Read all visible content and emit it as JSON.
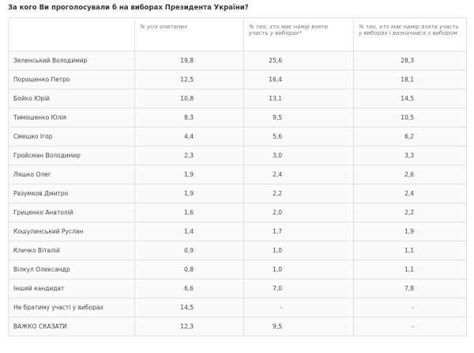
{
  "header": {
    "title": "За кого Ви проголосували б на виборах Президента України?"
  },
  "table": {
    "columns": [
      "% усіх опитаних",
      "% тих, хто має намір взяти участь у виборах*",
      "% тих, хто має намір взяти участь у виборах і визначився з вибором"
    ],
    "rows": [
      [
        "Зеленський Володимир",
        "19,8",
        "25,6",
        "28,3"
      ],
      [
        "Порошенко Петро",
        "12,5",
        "16,4",
        "18,1"
      ],
      [
        "Бойко Юрій",
        "10,8",
        "13,1",
        "14,5"
      ],
      [
        "Тимошенко Юлія",
        "8,3",
        "9,5",
        "10,5"
      ],
      [
        "Смешко Ігор",
        "4,4",
        "5,6",
        "6,2"
      ],
      [
        "Гройсман Володимир",
        "2,3",
        "3,0",
        "3,3"
      ],
      [
        "Ляшко Олег",
        "1,9",
        "2,4",
        "2,6"
      ],
      [
        "Разумков Дмитро",
        "1,9",
        "2,2",
        "2,4"
      ],
      [
        "Гриценко Анатолій",
        "1,6",
        "2,0",
        "2,2"
      ],
      [
        "Кошулинський Руслан",
        "1,4",
        "1,7",
        "1,9"
      ],
      [
        "Кличко Віталій",
        "0,9",
        "1,0",
        "1,1"
      ],
      [
        "Вілкул Олександр",
        "0,8",
        "1,0",
        "1,1"
      ],
      [
        "Інший кандидат",
        "6,6",
        "7,0",
        "7,8"
      ],
      [
        "Не братиму участі у виборах",
        "14,5",
        "-",
        "-"
      ],
      [
        "ВАЖКО СКАЗАТИ",
        "12,3",
        "9,5",
        "-"
      ]
    ]
  }
}
